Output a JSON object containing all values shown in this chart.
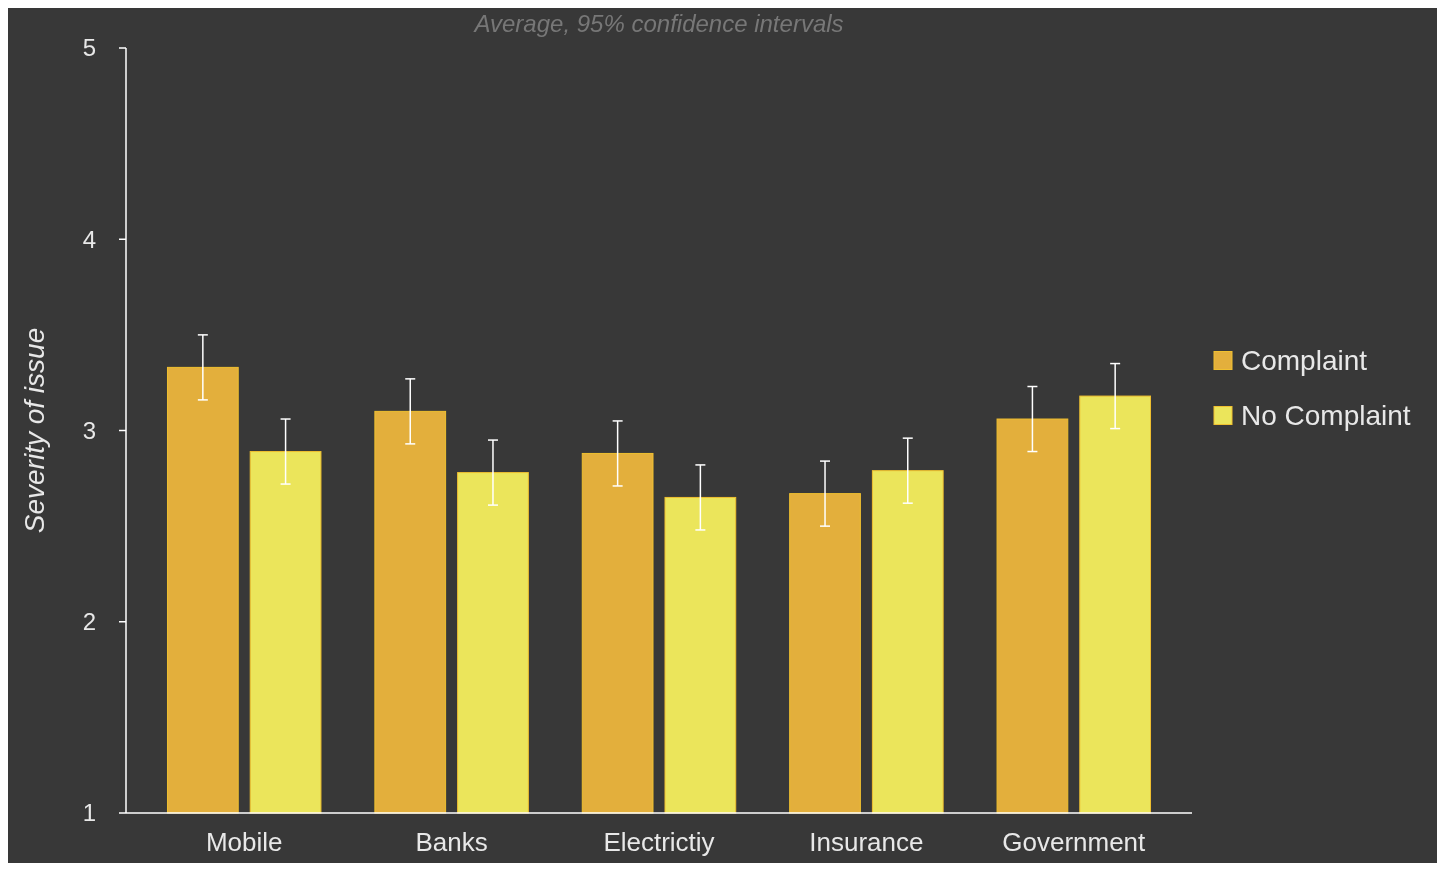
{
  "chart_data": {
    "type": "bar",
    "subtitle": "Average, 95% confidence intervals",
    "ylabel": "Severity of issue",
    "categories": [
      "Mobile",
      "Banks",
      "Electrictiy",
      "Insurance",
      "Government"
    ],
    "series": [
      {
        "name": "Complaint",
        "color": "#e3af3c",
        "values": [
          3.33,
          3.1,
          2.88,
          2.67,
          3.06
        ],
        "errors": [
          0.17,
          0.17,
          0.17,
          0.17,
          0.17
        ]
      },
      {
        "name": "No Complaint",
        "color": "#ebe55b",
        "values": [
          2.89,
          2.78,
          2.65,
          2.79,
          3.18
        ],
        "errors": [
          0.17,
          0.17,
          0.17,
          0.17,
          0.17
        ]
      }
    ],
    "ylim": [
      1,
      5
    ],
    "yticks": [
      1,
      2,
      3,
      4,
      5
    ],
    "grid": false,
    "legend": "right"
  }
}
